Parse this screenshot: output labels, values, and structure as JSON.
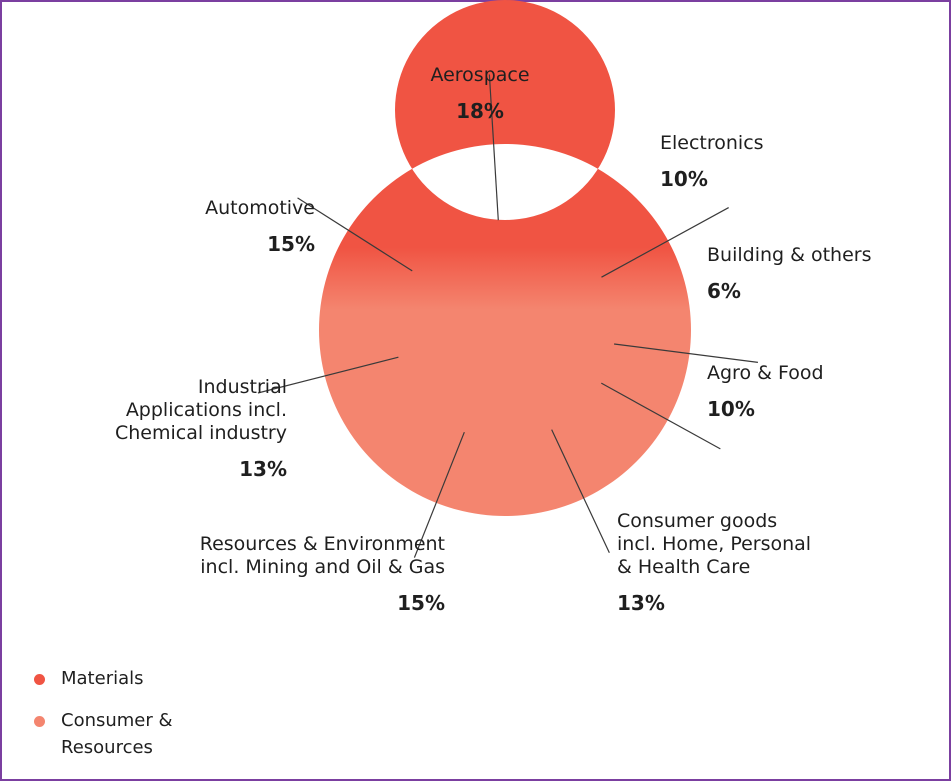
{
  "chart_data": {
    "type": "pie",
    "style": "donut",
    "categories": [
      "Aerospace",
      "Electronics",
      "Building & others",
      "Agro & Food",
      "Consumer goods incl. Home, Personal & Health Care",
      "Resources & Environment incl. Mining and Oil & Gas",
      "Industrial Applications incl. Chemical industry",
      "Automotive"
    ],
    "series": [
      {
        "values": [
          18,
          10,
          6,
          10,
          13,
          15,
          13,
          15
        ]
      }
    ],
    "value_labels": [
      "18%",
      "10%",
      "6%",
      "10%",
      "13%",
      "15%",
      "13%",
      "15%"
    ],
    "groups": [
      "Materials",
      "Materials",
      "Materials",
      "Consumer & Resources",
      "Consumer & Resources",
      "Consumer & Resources",
      "Materials/Consumer & Resources",
      "Materials"
    ],
    "legend": [
      {
        "label": "Materials",
        "color": "#f05443"
      },
      {
        "label": "Consumer & Resources",
        "color": "#f4856f"
      }
    ],
    "legend_position": "bottom-left",
    "colors": {
      "materials": "#f05443",
      "consumer": "#f4856f",
      "leader": "#3a3a3a"
    }
  },
  "labels": {
    "aerospace": {
      "name": "Aerospace",
      "pct": "18%"
    },
    "electronics": {
      "name": "Electronics",
      "pct": "10%"
    },
    "building": {
      "name": "Building & others",
      "pct": "6%"
    },
    "agro": {
      "name": "Agro & Food",
      "pct": "10%"
    },
    "consumer": {
      "name": "Consumer goods\nincl. Home, Personal\n& Health Care",
      "pct": "13%"
    },
    "resources": {
      "name": "Resources & Environment\nincl. Mining and Oil & Gas",
      "pct": "15%"
    },
    "industrial": {
      "name": "Industrial\nApplications incl.\nChemical industry",
      "pct": "13%"
    },
    "automotive": {
      "name": "Automotive",
      "pct": "15%"
    }
  },
  "legend": {
    "materials": "Materials",
    "consumer": "Consumer &\nResources"
  }
}
